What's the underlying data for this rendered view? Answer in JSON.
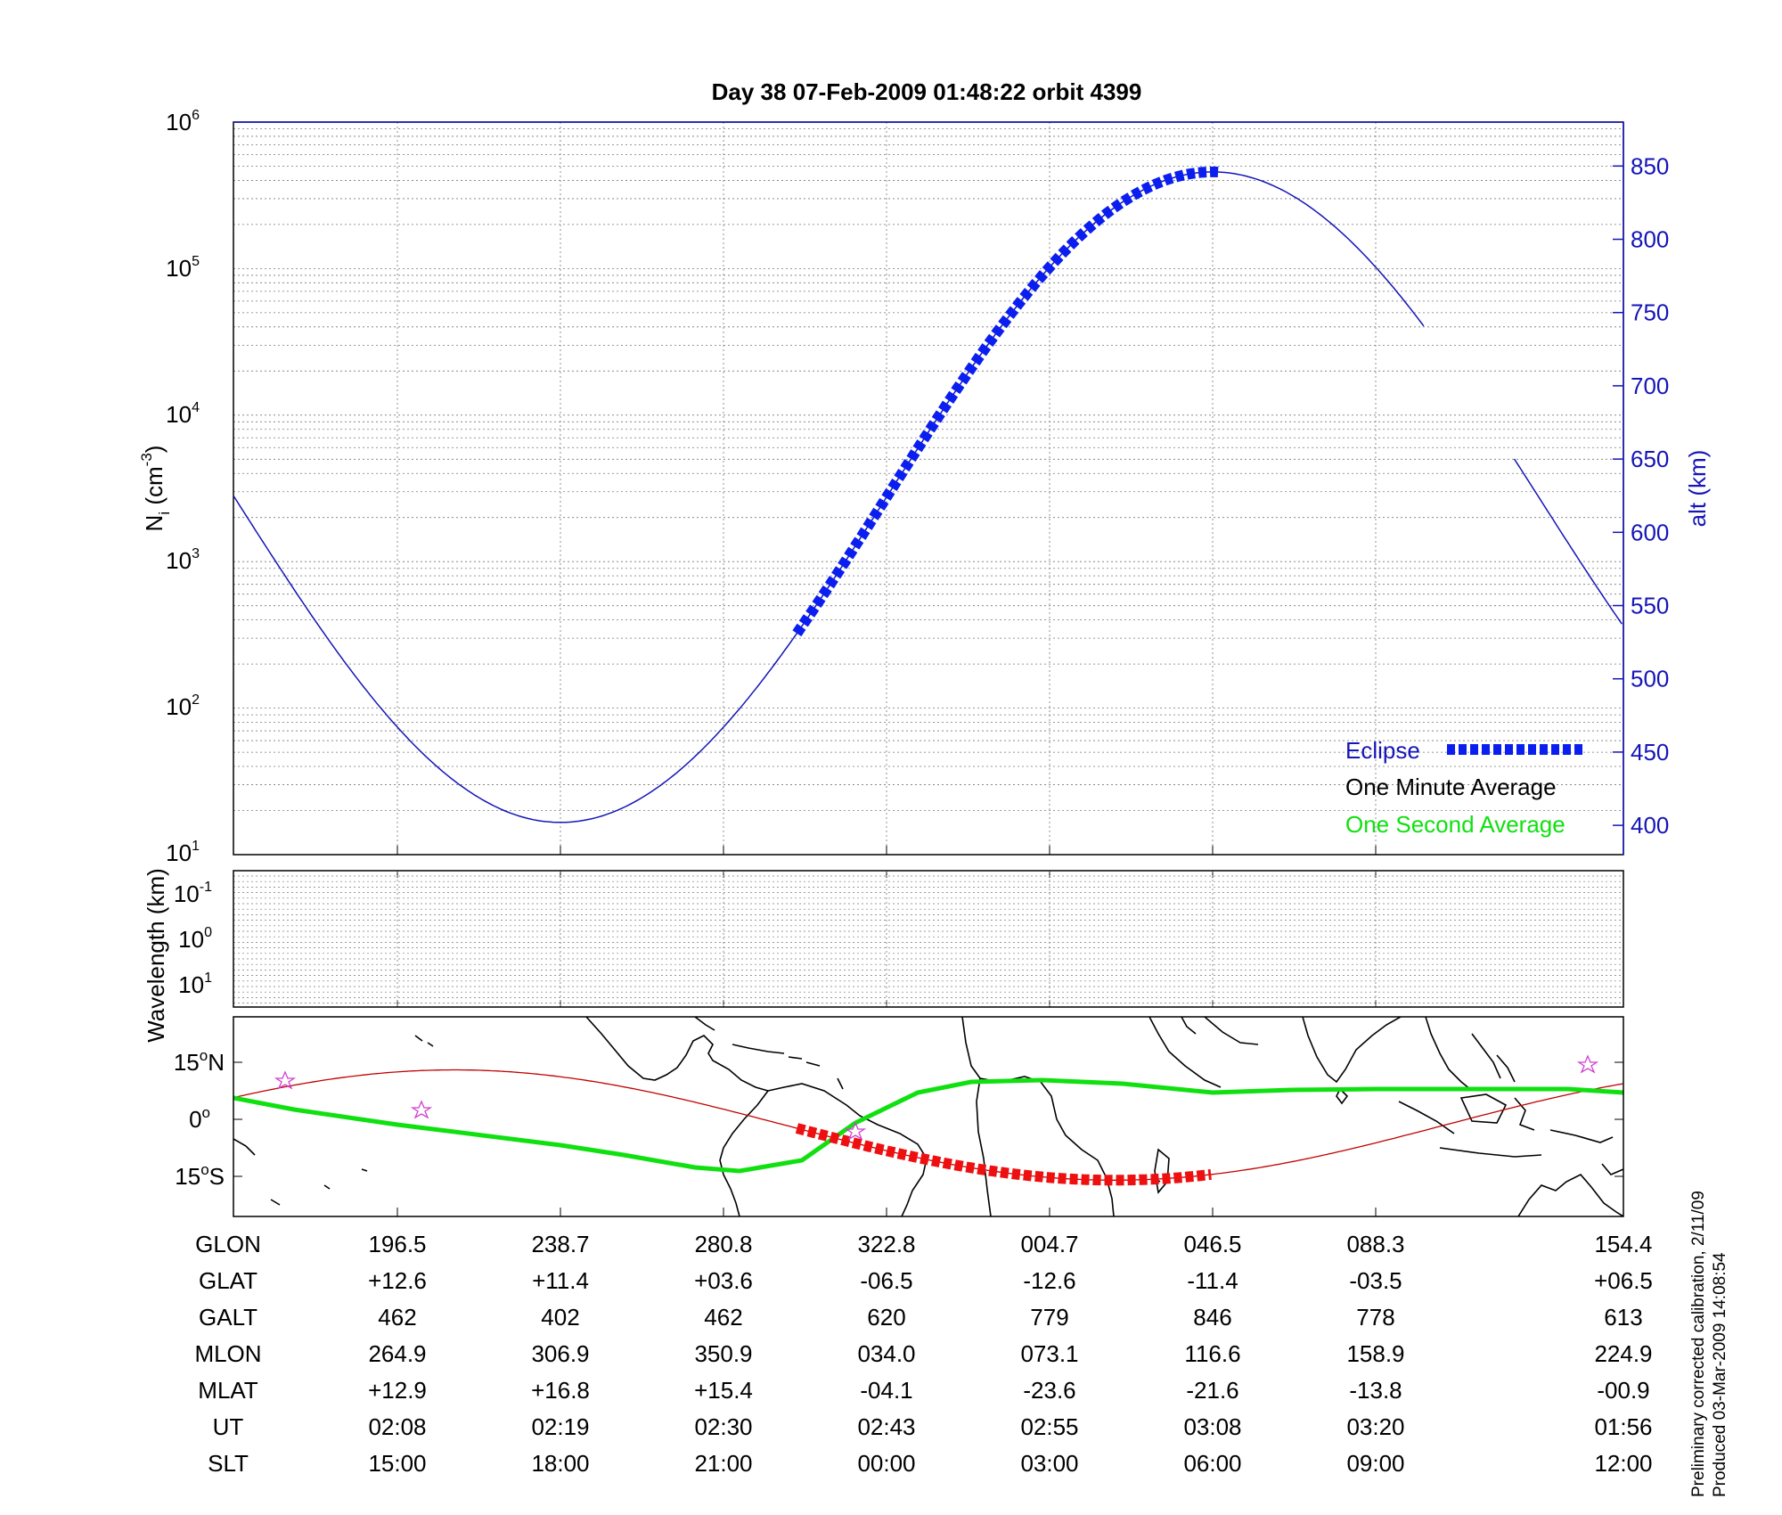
{
  "title": "Day 38  07-Feb-2009 01:48:22   orbit 4399",
  "colors": {
    "alt_axis": "#1515b8",
    "eclipse": "#0a1ef0",
    "one_minute": "#000000",
    "one_second": "#10e010",
    "ground_track": "#c00000",
    "eclipse_track": "#ee1010",
    "stars": "#d040d0"
  },
  "axes": {
    "left_label_main": "N",
    "left_label_sub": "i",
    "left_label_unit": " (cm",
    "left_label_exp": "-3",
    "left_label_close": ")",
    "left_ticks": [
      {
        "base": "10",
        "exp": "6"
      },
      {
        "base": "10",
        "exp": "5"
      },
      {
        "base": "10",
        "exp": "4"
      },
      {
        "base": "10",
        "exp": "3"
      },
      {
        "base": "10",
        "exp": "2"
      },
      {
        "base": "10",
        "exp": "1"
      }
    ],
    "right_label": "alt (km)",
    "right_ticks": [
      "850",
      "800",
      "750",
      "700",
      "650",
      "600",
      "550",
      "500",
      "450",
      "400"
    ],
    "wave_label": "Wavelength (km)",
    "wave_ticks": [
      {
        "base": "10",
        "exp": "-1"
      },
      {
        "base": "10",
        "exp": "0"
      },
      {
        "base": "10",
        "exp": "1"
      }
    ],
    "map_ticks": [
      {
        "num": "15",
        "deg": "o",
        "hem": "N"
      },
      {
        "num": "0",
        "deg": "o",
        "hem": ""
      },
      {
        "num": "15",
        "deg": "o",
        "hem": "S"
      }
    ]
  },
  "legend": {
    "eclipse": "Eclipse",
    "one_minute": "One Minute Average",
    "one_second": "One Second Average"
  },
  "chart_data": {
    "type": "line",
    "x_label": "UT",
    "x": [
      "02:08",
      "02:19",
      "02:30",
      "02:43",
      "02:55",
      "03:08",
      "03:20",
      "01:56"
    ],
    "y_left_scale": "log",
    "y_left_range": [
      10,
      1000000
    ],
    "y_right_range": [
      380,
      880
    ],
    "grid": true,
    "legend_placement": "bottom-right",
    "series": [
      {
        "name": "alt (km)",
        "x_tick_index": [
          0,
          1,
          2,
          3,
          4,
          5,
          6,
          7
        ],
        "values": [
          462,
          402,
          462,
          620,
          779,
          846,
          778,
          613
        ]
      },
      {
        "name": "Eclipse",
        "x_tick_index_range": [
          2.45,
          5.05
        ],
        "note_values_follow_alt": true
      }
    ]
  },
  "table": {
    "row_labels": [
      "GLON",
      "GLAT",
      "GALT",
      "MLON",
      "MLAT",
      "UT",
      "SLT"
    ],
    "columns": [
      [
        "196.5",
        "+12.6",
        "462",
        "264.9",
        "+12.9",
        "02:08",
        "15:00"
      ],
      [
        "238.7",
        "+11.4",
        "402",
        "306.9",
        "+16.8",
        "02:19",
        "18:00"
      ],
      [
        "280.8",
        "+03.6",
        "462",
        "350.9",
        "+15.4",
        "02:30",
        "21:00"
      ],
      [
        "322.8",
        "-06.5",
        "620",
        "034.0",
        "-04.1",
        "02:43",
        "00:00"
      ],
      [
        "004.7",
        "-12.6",
        "779",
        "073.1",
        "-23.6",
        "02:55",
        "03:00"
      ],
      [
        "046.5",
        "-11.4",
        "846",
        "116.6",
        "-21.6",
        "03:08",
        "06:00"
      ],
      [
        "088.3",
        "-03.5",
        "778",
        "158.9",
        "-13.8",
        "03:20",
        "09:00"
      ],
      [
        "154.4",
        "+06.5",
        "613",
        "224.9",
        "-00.9",
        "01:56",
        "12:00"
      ]
    ]
  },
  "footer": {
    "line1": "Preliminary corrected calibration, 2/11/09",
    "line2": "Produced 03-Mar-2009 14:08:54"
  }
}
